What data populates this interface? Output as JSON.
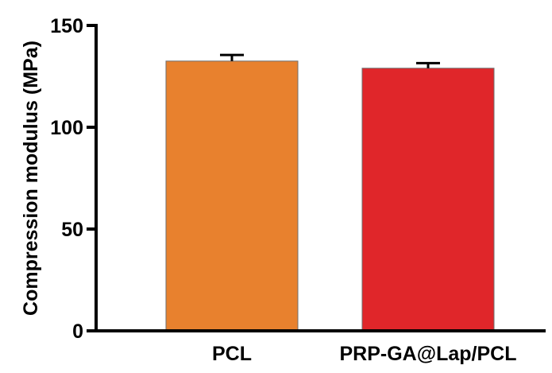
{
  "chart_data": {
    "type": "bar",
    "categories": [
      "PCL",
      "PRP-GA@Lap/PCL"
    ],
    "values": [
      132.5,
      129
    ],
    "error": [
      3,
      2.5
    ],
    "colors": [
      "#e8812e",
      "#e0262a"
    ],
    "xlabel": "",
    "ylabel": "Compression modulus (MPa)",
    "ylim": [
      0,
      150
    ],
    "yticks": [
      0,
      50,
      100,
      150
    ],
    "grid": false
  }
}
